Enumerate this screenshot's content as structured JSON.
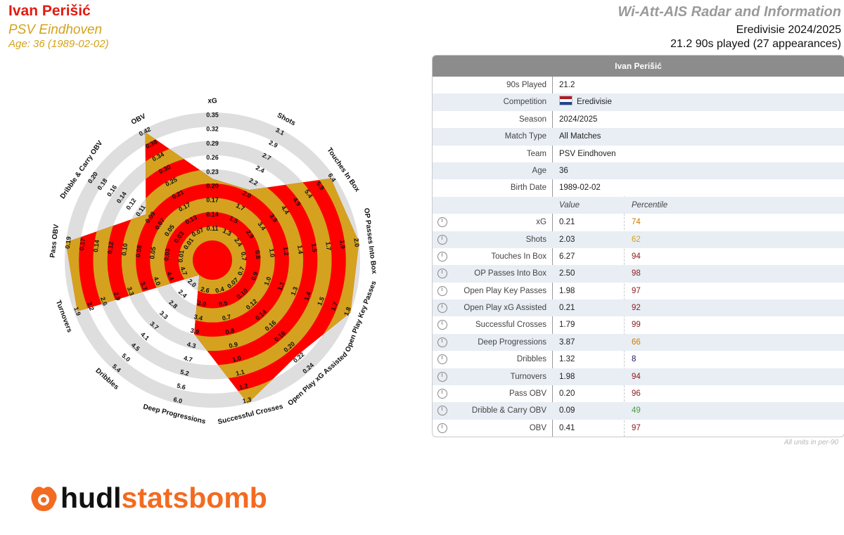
{
  "header": {
    "player": "Ivan Perišić",
    "team": "PSV Eindhoven",
    "age_line": "Age: 36 (1989-02-02)",
    "title": "Wi-Att-AIS Radar and Information",
    "competition_line": "Eredivisie 2024/2025",
    "played_line": "21.2 90s played (27 appearances)"
  },
  "colors": {
    "red": "#ff0000",
    "gold": "#d4a21e",
    "grey": "#dedede",
    "name_red": "#e11b10"
  },
  "table": {
    "title": "Ivan Perišić",
    "info": [
      {
        "label": "90s Played",
        "value": "21.2"
      },
      {
        "label": "Competition",
        "value": "Eredivisie",
        "flag": "netherlands-flag-icon"
      },
      {
        "label": "Season",
        "value": "2024/2025"
      },
      {
        "label": "Match Type",
        "value": "All Matches"
      },
      {
        "label": "Team",
        "value": "PSV Eindhoven"
      },
      {
        "label": "Age",
        "value": "36"
      },
      {
        "label": "Birth Date",
        "value": "1989-02-02"
      }
    ],
    "col_value": "Value",
    "col_percentile": "Percentile",
    "metrics": [
      {
        "label": "xG",
        "value": "0.21",
        "percentile": "74",
        "color": "#d07a00"
      },
      {
        "label": "Shots",
        "value": "2.03",
        "percentile": "62",
        "color": "#d4a21e"
      },
      {
        "label": "Touches In Box",
        "value": "6.27",
        "percentile": "94",
        "color": "#8b1a1a"
      },
      {
        "label": "OP Passes Into Box",
        "value": "2.50",
        "percentile": "98",
        "color": "#8b1a1a"
      },
      {
        "label": "Open Play Key Passes",
        "value": "1.98",
        "percentile": "97",
        "color": "#8b1a1a"
      },
      {
        "label": "Open Play xG Assisted",
        "value": "0.21",
        "percentile": "92",
        "color": "#8b1a1a"
      },
      {
        "label": "Successful Crosses",
        "value": "1.79",
        "percentile": "99",
        "color": "#8b1a1a"
      },
      {
        "label": "Deep Progressions",
        "value": "3.87",
        "percentile": "66",
        "color": "#d07a00"
      },
      {
        "label": "Dribbles",
        "value": "1.32",
        "percentile": "8",
        "color": "#1a1a5e"
      },
      {
        "label": "Turnovers",
        "value": "1.98",
        "percentile": "94",
        "color": "#8b1a1a"
      },
      {
        "label": "Pass OBV",
        "value": "0.20",
        "percentile": "96",
        "color": "#8b1a1a"
      },
      {
        "label": "Dribble & Carry OBV",
        "value": "0.09",
        "percentile": "49",
        "color": "#4a9a3a"
      },
      {
        "label": "OBV",
        "value": "0.41",
        "percentile": "97",
        "color": "#8b1a1a"
      }
    ],
    "footnote": "All units in per-90"
  },
  "chart_data": {
    "type": "radar",
    "axes": [
      {
        "label": "xG",
        "ticks": [
          "0.11",
          "0.14",
          "0.17",
          "0.20",
          "0.23",
          "0.26",
          "0.29",
          "0.32",
          "0.35"
        ],
        "value": 0.21,
        "range": [
          0.08,
          0.35
        ],
        "reversed": false
      },
      {
        "label": "Shots",
        "ticks": [
          "1.3",
          "1.5",
          "1.7",
          "2.0",
          "2.2",
          "2.4",
          "2.7",
          "2.9",
          "3.1"
        ],
        "value": 2.03,
        "range": [
          1.1,
          3.1
        ],
        "reversed": false
      },
      {
        "label": "Touches In Box",
        "ticks": [
          "2.4",
          "2.9",
          "3.4",
          "3.9",
          "4.4",
          "4.9",
          "5.4",
          "5.9",
          "6.4"
        ],
        "value": 6.27,
        "range": [
          1.9,
          6.4
        ],
        "reversed": false
      },
      {
        "label": "OP Passes Into Box",
        "ticks": [
          "0.7",
          "0.8",
          "1.0",
          "1.2",
          "1.4",
          "1.5",
          "1.7",
          "1.9",
          "2.0"
        ],
        "value": 2.5,
        "range": [
          0.5,
          2.0
        ],
        "reversed": false
      },
      {
        "label": "Open Play Key Passes",
        "ticks": [
          "0.7",
          "0.9",
          "1.0",
          "1.1",
          "1.3",
          "1.4",
          "1.5",
          "1.7",
          "1.8"
        ],
        "value": 1.98,
        "range": [
          0.6,
          1.8
        ],
        "reversed": false
      },
      {
        "label": "Open Play xG Assisted",
        "ticks": [
          "0.07",
          "0.10",
          "0.12",
          "0.14",
          "0.16",
          "0.18",
          "0.20",
          "0.22",
          "0.24"
        ],
        "value": 0.21,
        "range": [
          0.05,
          0.24
        ],
        "reversed": false
      },
      {
        "label": "Successful Crosses",
        "ticks": [
          "0.4",
          "0.5",
          "0.7",
          "0.8",
          "0.9",
          "1.0",
          "1.1",
          "1.2",
          "1.3"
        ],
        "value": 1.79,
        "range": [
          0.3,
          1.3
        ],
        "reversed": false
      },
      {
        "label": "Deep Progressions",
        "ticks": [
          "2.6",
          "3.0",
          "3.4",
          "3.9",
          "4.3",
          "4.7",
          "5.2",
          "5.6",
          "6.0"
        ],
        "value": 3.87,
        "range": [
          2.2,
          6.0
        ],
        "reversed": false
      },
      {
        "label": "Dribbles",
        "ticks": [
          "2.0",
          "2.4",
          "2.8",
          "3.3",
          "3.7",
          "4.1",
          "4.5",
          "5.0",
          "5.4"
        ],
        "value": 1.32,
        "range": [
          1.6,
          5.4
        ],
        "reversed": false
      },
      {
        "label": "Turnovers",
        "ticks": [
          "4.7",
          "4.4",
          "4.0",
          "3.7",
          "3.3",
          "2.9",
          "2.6",
          "2.2",
          "1.9"
        ],
        "value": 1.98,
        "range": [
          5.1,
          1.9
        ],
        "reversed": true
      },
      {
        "label": "Pass OBV",
        "ticks": [
          "0.01",
          "0.03",
          "0.05",
          "0.08",
          "0.10",
          "0.12",
          "0.14",
          "0.17",
          "0.19"
        ],
        "value": 0.2,
        "range": [
          -0.01,
          0.19
        ],
        "reversed": false
      },
      {
        "label": "Dribble & Carry OBV",
        "ticks": [
          "0.01",
          "0.03",
          "0.05",
          "0.07",
          "0.09",
          "0.11",
          "0.12",
          "0.14",
          "0.16",
          "0.18",
          "0.20"
        ],
        "value": 0.09,
        "range": [
          -0.01,
          0.2
        ],
        "reversed": false
      },
      {
        "label": "OBV",
        "ticks": [
          "0.07",
          "0.13",
          "0.17",
          "0.21",
          "0.25",
          "0.30",
          "0.34",
          "0.38",
          "0.42"
        ],
        "value": 0.41,
        "range": [
          0.03,
          0.42
        ],
        "reversed": false
      }
    ]
  },
  "logo": {
    "hudl": "hudl",
    "statsbomb": "statsbomb"
  }
}
